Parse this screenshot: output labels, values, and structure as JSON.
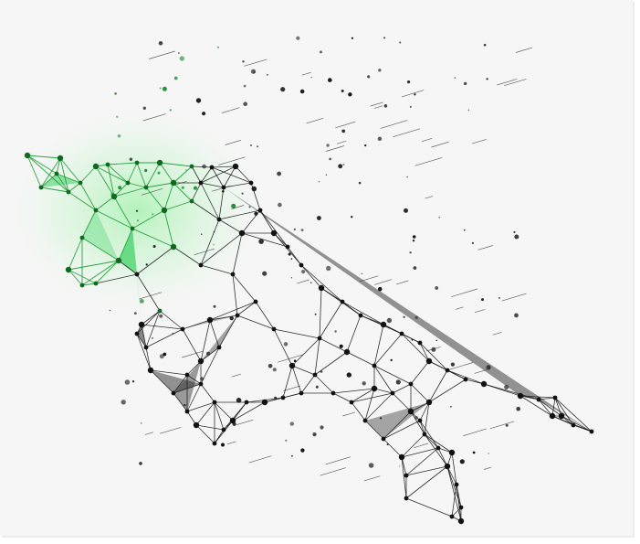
{
  "illustration": {
    "subject": "low-poly-bull",
    "style": "wireframe-network",
    "colors": {
      "background": "#f6f6f6",
      "page": "#ffffff",
      "body_line": "#1a1a1a",
      "body_fill": "#2b2b2b",
      "head_line": "#159a2e",
      "head_fill": "#2ccc55",
      "glow": "#7cf08a"
    }
  }
}
